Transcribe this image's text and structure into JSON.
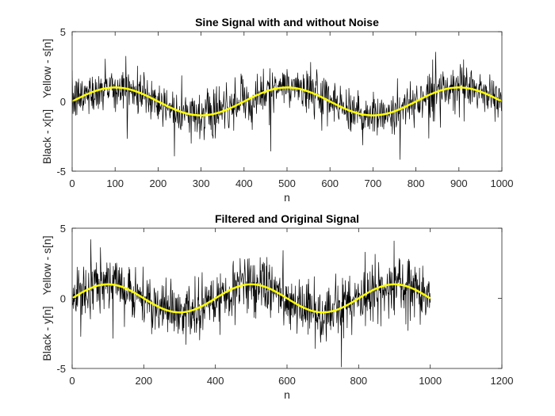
{
  "window": {
    "background": "#ffffff"
  },
  "colors": {
    "noisy": "#000000",
    "clean": "#ffff00",
    "axes": "#262626"
  },
  "chart_data": [
    {
      "type": "line",
      "title": "Sine Signal with and without Noise",
      "xlabel": "n",
      "ylabel_parts": [
        "Black - x[n]",
        "Yellow - s[n]"
      ],
      "xlim": [
        0,
        1000
      ],
      "ylim": [
        -5,
        5
      ],
      "xticks": [
        0,
        100,
        200,
        300,
        400,
        500,
        600,
        700,
        800,
        900,
        1000
      ],
      "yticks": [
        -5,
        0,
        5
      ],
      "grid": false,
      "box": true,
      "series": [
        {
          "color": "#000000",
          "line_width": 0.7,
          "kind": "noisy",
          "signal": {
            "amplitude": 1,
            "period": 400,
            "n_start": 0,
            "n_end": 1000
          },
          "noise": {
            "std": 0.8,
            "peak_max": 4.3,
            "peak_min": -4.2
          }
        },
        {
          "color": "#ffff00",
          "line_width": 2.5,
          "kind": "clean",
          "signal": {
            "amplitude": 1,
            "period": 400,
            "n_start": 0,
            "n_end": 1000
          }
        }
      ]
    },
    {
      "type": "line",
      "title": "Filtered and Original Signal",
      "xlabel": "n",
      "ylabel_parts": [
        "Black - y[n]",
        "Yellow - s[n]"
      ],
      "xlim": [
        0,
        1200
      ],
      "ylim": [
        -5,
        5
      ],
      "xticks": [
        0,
        200,
        400,
        600,
        800,
        1000,
        1200
      ],
      "yticks": [
        -5,
        0,
        5
      ],
      "grid": false,
      "box": true,
      "series": [
        {
          "color": "#000000",
          "line_width": 0.7,
          "kind": "noisy",
          "signal": {
            "amplitude": 1,
            "period": 400,
            "n_start": 0,
            "n_end": 1000
          },
          "noise": {
            "std": 1.0,
            "peak_max": 5,
            "peak_min": -5
          }
        },
        {
          "color": "#ffff00",
          "line_width": 2.5,
          "kind": "clean",
          "signal": {
            "amplitude": 1,
            "period": 400,
            "n_start": 0,
            "n_end": 1000
          }
        }
      ]
    }
  ]
}
